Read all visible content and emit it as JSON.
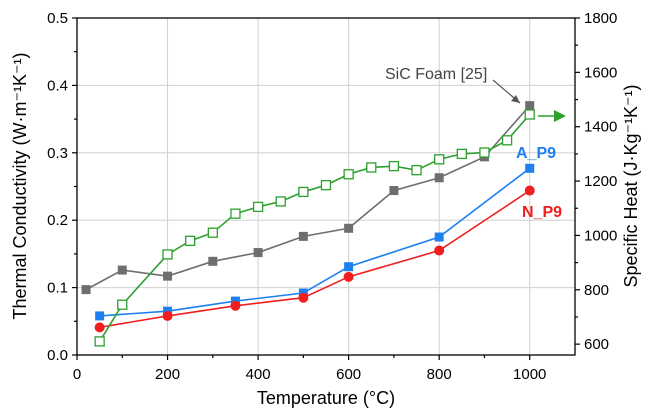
{
  "chart_data": {
    "type": "line",
    "title": "",
    "xlabel": "Temperature (°C)",
    "ylabel_left": "Thermal Conductivity (W·m⁻¹K⁻¹)",
    "ylabel_right": "Specific Heat (J·Kg⁻¹K⁻¹)",
    "xlim": [
      0,
      1100
    ],
    "ylim_left": [
      0,
      0.5
    ],
    "ylim_right": [
      560,
      1800
    ],
    "x_ticks": [
      0,
      200,
      400,
      600,
      800,
      1000
    ],
    "y_left_ticks": [
      "0.0",
      "0.1",
      "0.2",
      "0.3",
      "0.4",
      "0.5"
    ],
    "y_right_ticks": [
      "600",
      "800",
      "1000",
      "1200",
      "1400",
      "1600",
      "1800"
    ],
    "grid": true,
    "series": [
      {
        "name": "SiC Foam [25]",
        "axis": "left",
        "color": "#6e6e6e",
        "marker": "square-filled",
        "x": [
          20,
          100,
          200,
          300,
          400,
          500,
          600,
          700,
          800,
          900,
          1000
        ],
        "y": [
          0.097,
          0.126,
          0.117,
          0.139,
          0.152,
          0.176,
          0.188,
          0.244,
          0.263,
          0.294,
          0.37
        ]
      },
      {
        "name": "A_P9",
        "axis": "left",
        "color": "#1e7ff0",
        "marker": "square-filled",
        "x": [
          50,
          200,
          350,
          500,
          600,
          800,
          1000
        ],
        "y": [
          0.058,
          0.065,
          0.08,
          0.092,
          0.131,
          0.175,
          0.277
        ]
      },
      {
        "name": "N_P9",
        "axis": "left",
        "color": "#f01e1e",
        "marker": "circle-filled",
        "x": [
          50,
          200,
          350,
          500,
          600,
          800,
          1000
        ],
        "y": [
          0.041,
          0.058,
          0.073,
          0.085,
          0.116,
          0.155,
          0.244
        ]
      },
      {
        "name": "",
        "axis": "right",
        "color": "#2ca02c",
        "marker": "square-open",
        "x": [
          50,
          100,
          200,
          250,
          300,
          350,
          400,
          450,
          500,
          550,
          600,
          650,
          700,
          750,
          800,
          850,
          900,
          950,
          1000
        ],
        "y": [
          610,
          745,
          930,
          980,
          1010,
          1080,
          1105,
          1125,
          1160,
          1185,
          1225,
          1250,
          1255,
          1240,
          1280,
          1300,
          1305,
          1350,
          1445
        ]
      }
    ],
    "annotations": [
      {
        "text": "SiC Foam [25]",
        "color": "#444444"
      },
      {
        "text": "A_P9",
        "color": "#1e7ff0"
      },
      {
        "text": "N_P9",
        "color": "#f01e1e"
      }
    ]
  }
}
